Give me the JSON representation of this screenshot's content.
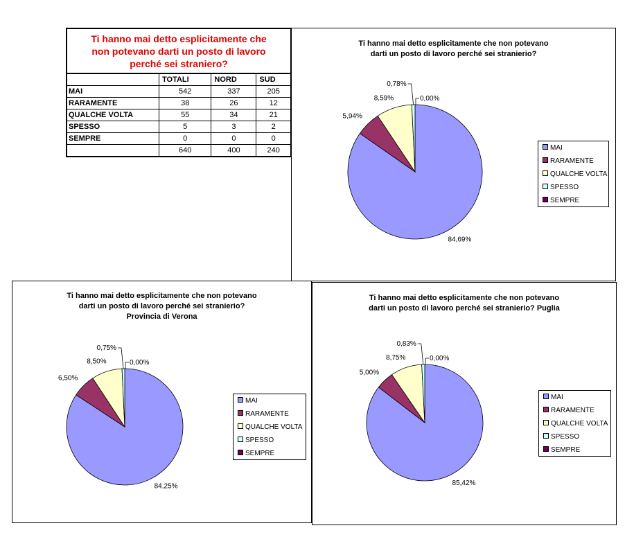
{
  "table": {
    "title": "Ti hanno mai detto esplicitamente che\nnon potevano darti un posto di lavoro\nperché sei straniero?",
    "headers": [
      "",
      "TOTALI",
      "NORD",
      "SUD"
    ],
    "rows": [
      {
        "label": "MAI",
        "values": [
          "542",
          "337",
          "205"
        ]
      },
      {
        "label": "RARAMENTE",
        "values": [
          "38",
          "26",
          "12"
        ]
      },
      {
        "label": "QUALCHE VOLTA",
        "values": [
          "55",
          "34",
          "21"
        ]
      },
      {
        "label": "SPESSO",
        "values": [
          "5",
          "3",
          "2"
        ]
      },
      {
        "label": "SEMPRE",
        "values": [
          "0",
          "0",
          "0"
        ]
      }
    ],
    "totals": [
      "640",
      "400",
      "240"
    ]
  },
  "legend_colors": [
    "#9999ff",
    "#993366",
    "#ffffcc",
    "#ccffff",
    "#660066"
  ],
  "chart_data": [
    {
      "type": "pie",
      "title": "Ti hanno mai detto esplicitamente che non potevano\ndarti un posto di lavoro perché sei stranierio?",
      "categories": [
        "MAI",
        "RARAMENTE",
        "QUALCHE VOLTA",
        "SPESSO",
        "SEMPRE"
      ],
      "values": [
        84.69,
        5.94,
        8.59,
        0.78,
        0.0
      ],
      "labels": [
        "84,69%",
        "5,94%",
        "8,59%",
        "0,78%",
        "0,00%"
      ],
      "legend": "right"
    },
    {
      "type": "pie",
      "title": "Ti hanno mai detto esplicitamente che non potevano\ndarti un posto di lavoro perché sei stranierio?\nProvincia di Verona",
      "categories": [
        "MAI",
        "RARAMENTE",
        "QUALCHE VOLTA",
        "SPESSO",
        "SEMPRE"
      ],
      "values": [
        84.25,
        6.5,
        8.5,
        0.75,
        0.0
      ],
      "labels": [
        "84,25%",
        "6,50%",
        "8,50%",
        "0,75%",
        "0,00%"
      ],
      "legend": "right"
    },
    {
      "type": "pie",
      "title": "Ti hanno mai detto esplicitamente che non potevano\ndarti un posto di lavoro perché sei stranierio? Puglia",
      "categories": [
        "MAI",
        "RARAMENTE",
        "QUALCHE VOLTA",
        "SPESSO",
        "SEMPRE"
      ],
      "values": [
        85.42,
        5.0,
        8.75,
        0.83,
        0.0
      ],
      "labels": [
        "85,42%",
        "5,00%",
        "8,75%",
        "0,83%",
        "0,00%"
      ],
      "legend": "right"
    }
  ]
}
